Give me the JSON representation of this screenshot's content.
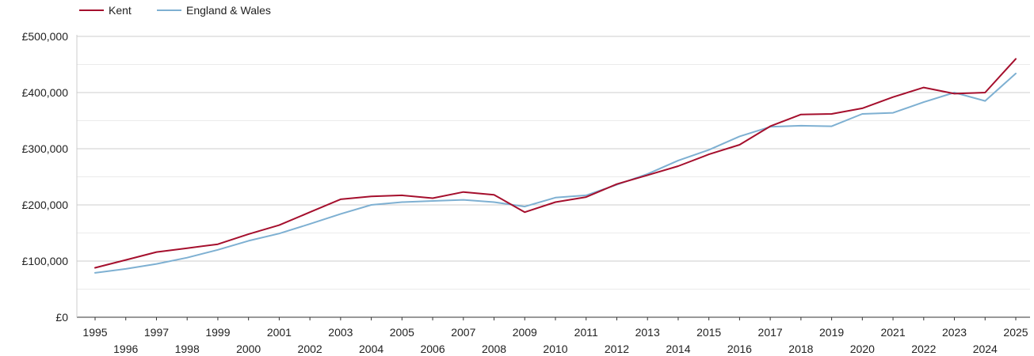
{
  "chart_data": {
    "type": "line",
    "x": [
      1995,
      1996,
      1997,
      1998,
      1999,
      2000,
      2001,
      2002,
      2003,
      2004,
      2005,
      2006,
      2007,
      2008,
      2009,
      2010,
      2011,
      2012,
      2013,
      2014,
      2015,
      2016,
      2017,
      2018,
      2019,
      2020,
      2021,
      2022,
      2023,
      2024,
      2025
    ],
    "series": [
      {
        "name": "Kent",
        "color": "#a50f2d",
        "values": [
          88000,
          102000,
          116000,
          123000,
          130000,
          148000,
          164000,
          187000,
          210000,
          215000,
          217000,
          212000,
          223000,
          218000,
          187000,
          205000,
          214000,
          237000,
          253000,
          269000,
          290000,
          307000,
          340000,
          361000,
          362000,
          372000,
          392000,
          409000,
          398000,
          400000,
          460000
        ]
      },
      {
        "name": "England & Wales",
        "color": "#7eb0d2",
        "values": [
          79000,
          86000,
          95000,
          106000,
          120000,
          136000,
          149000,
          166000,
          184000,
          200000,
          205000,
          207000,
          209000,
          205000,
          197000,
          213000,
          217000,
          236000,
          255000,
          279000,
          298000,
          322000,
          339000,
          341000,
          340000,
          362000,
          364000,
          383000,
          400000,
          385000,
          434000
        ]
      }
    ],
    "y_ticks": [
      "£0",
      "£100,000",
      "£200,000",
      "£300,000",
      "£400,000",
      "£500,000"
    ],
    "ylim": [
      0,
      500000
    ],
    "grid": true,
    "legend_position": "top-left"
  }
}
